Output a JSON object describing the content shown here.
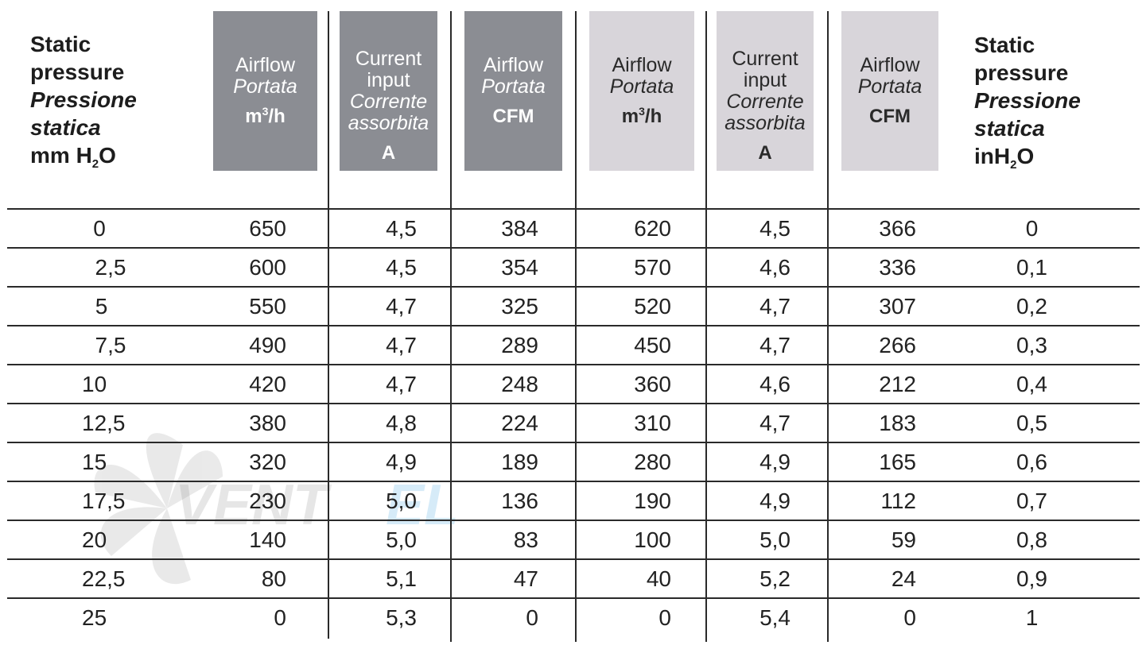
{
  "watermark": {
    "text_dark": "VENT",
    "text_accent": "EL",
    "accent_color": "#4aa8e0"
  },
  "header": {
    "left": {
      "line1": "Static",
      "line2": "pressure",
      "line3": "Pressione",
      "line4": "statica",
      "unit_pre": "mm H",
      "unit_sub": "2",
      "unit_post": "O"
    },
    "right": {
      "line1": "Static",
      "line2": "pressure",
      "line3": "Pressione",
      "line4": "statica",
      "unit_pre": "inH",
      "unit_sub": "2",
      "unit_post": "O"
    },
    "groups": [
      {
        "shade": "dark",
        "airflow_m3h": {
          "en": "Airflow",
          "it": "Portata",
          "unit_pre": "m",
          "unit_sup": "3",
          "unit_post": "/h"
        },
        "current": {
          "en1": "Current",
          "en2": "input",
          "it1": "Corrente",
          "it2": "assorbita",
          "unit": "A"
        },
        "airflow_cfm": {
          "en": "Airflow",
          "it": "Portata",
          "unit": "CFM"
        }
      },
      {
        "shade": "light",
        "airflow_m3h": {
          "en": "Airflow",
          "it": "Portata",
          "unit_pre": "m",
          "unit_sup": "3",
          "unit_post": "/h"
        },
        "current": {
          "en1": "Current",
          "en2": "input",
          "it1": "Corrente",
          "it2": "assorbita",
          "unit": "A"
        },
        "airflow_cfm": {
          "en": "Airflow",
          "it": "Portata",
          "unit": "CFM"
        }
      }
    ]
  },
  "rows": [
    [
      "0",
      "650",
      "4,5",
      "384",
      "620",
      "4,5",
      "366",
      "0"
    ],
    [
      "2,5",
      "600",
      "4,5",
      "354",
      "570",
      "4,6",
      "336",
      "0,1"
    ],
    [
      "5",
      "550",
      "4,7",
      "325",
      "520",
      "4,7",
      "307",
      "0,2"
    ],
    [
      "7,5",
      "490",
      "4,7",
      "289",
      "450",
      "4,7",
      "266",
      "0,3"
    ],
    [
      "10",
      "420",
      "4,7",
      "248",
      "360",
      "4,6",
      "212",
      "0,4"
    ],
    [
      "12,5",
      "380",
      "4,8",
      "224",
      "310",
      "4,7",
      "183",
      "0,5"
    ],
    [
      "15",
      "320",
      "4,9",
      "189",
      "280",
      "4,9",
      "165",
      "0,6"
    ],
    [
      "17,5",
      "230",
      "5,0",
      "136",
      "190",
      "4,9",
      "112",
      "0,7"
    ],
    [
      "20",
      "140",
      "5,0",
      "83",
      "100",
      "5,0",
      "59",
      "0,8"
    ],
    [
      "22,5",
      "80",
      "5,1",
      "47",
      "40",
      "5,2",
      "24",
      "0,9"
    ],
    [
      "25",
      "0",
      "5,3",
      "0",
      "0",
      "5,4",
      "0",
      "1"
    ]
  ]
}
